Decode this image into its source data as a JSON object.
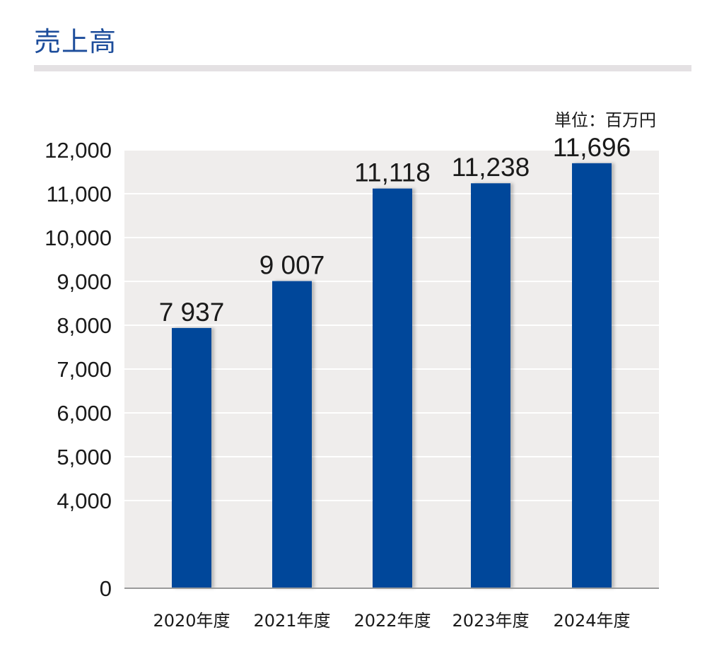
{
  "page": {
    "title": "売上高"
  },
  "colors": {
    "title": "#1d4d9b",
    "title_rule": "#e4e1e3",
    "plot_bg": "#efedec",
    "gridline": "#ffffff",
    "bar": "#00479a",
    "axis": "#9a9a9a"
  },
  "chart_data": {
    "type": "bar",
    "title": "売上高",
    "unit_label": "単位：百万円",
    "categories": [
      "2020年度",
      "2021年度",
      "2022年度",
      "2023年度",
      "2024年度"
    ],
    "values": [
      7937,
      9007,
      11118,
      11238,
      11696
    ],
    "value_labels": [
      "7 937",
      "9 007",
      "11,118",
      "11,238",
      "11,696"
    ],
    "y_ticks": [
      0,
      4000,
      5000,
      6000,
      7000,
      8000,
      9000,
      10000,
      11000,
      12000
    ],
    "y_tick_labels": [
      "0",
      "4,000",
      "5,000",
      "6,000",
      "7,000",
      "8,000",
      "9,000",
      "10,000",
      "11,000",
      "12,000"
    ],
    "ylim": [
      0,
      12000
    ],
    "axis_break": [
      0,
      4000
    ],
    "grid": true,
    "xlabel": "",
    "ylabel": ""
  }
}
